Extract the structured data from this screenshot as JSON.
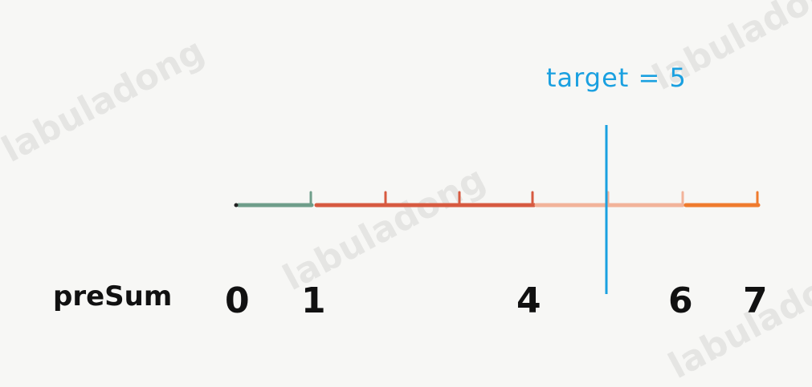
{
  "target_label": "target = 5",
  "presum_label": "preSum",
  "presum_values": [
    "0",
    "1",
    "4",
    "6",
    "7"
  ],
  "watermark": "labuladong",
  "colors": {
    "segment_1": "#6f9e8a",
    "segment_2": "#d75a40",
    "segment_3": "#f2b39a",
    "segment_4": "#ef7b2e",
    "target_line": "#1aa0e0"
  }
}
